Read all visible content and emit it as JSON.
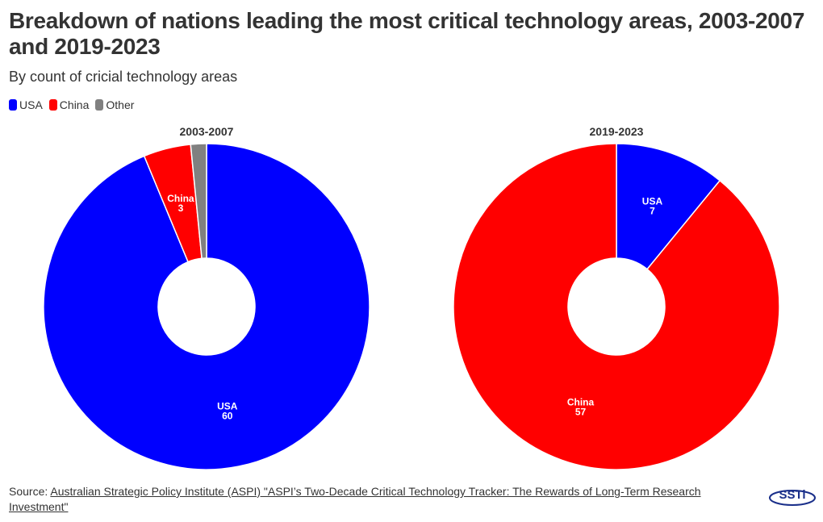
{
  "chart_data": [
    {
      "type": "pie",
      "donut": true,
      "title": "2003-2007",
      "categories": [
        "USA",
        "China",
        "Other"
      ],
      "values": [
        60,
        3,
        1
      ],
      "labels_shown": [
        "USA",
        "China"
      ]
    },
    {
      "type": "pie",
      "donut": true,
      "title": "2019-2023",
      "categories": [
        "USA",
        "China"
      ],
      "values": [
        7,
        57
      ],
      "labels_shown": [
        "USA",
        "China"
      ]
    }
  ],
  "title": "Breakdown of nations leading the most critical technology areas, 2003-2007 and 2019-2023",
  "subtitle": "By count of cricial technology areas",
  "legend": [
    {
      "name": "USA",
      "color": "#0000ff"
    },
    {
      "name": "China",
      "color": "#ff0000"
    },
    {
      "name": "Other",
      "color": "#808080"
    }
  ],
  "source_prefix": "Source: ",
  "source_link": "Australian Strategic Policy Institute (ASPI) \"ASPI’s Two-Decade Critical Technology Tracker: The Rewards of Long-Term Research Investment\"",
  "logo": "SSTi"
}
